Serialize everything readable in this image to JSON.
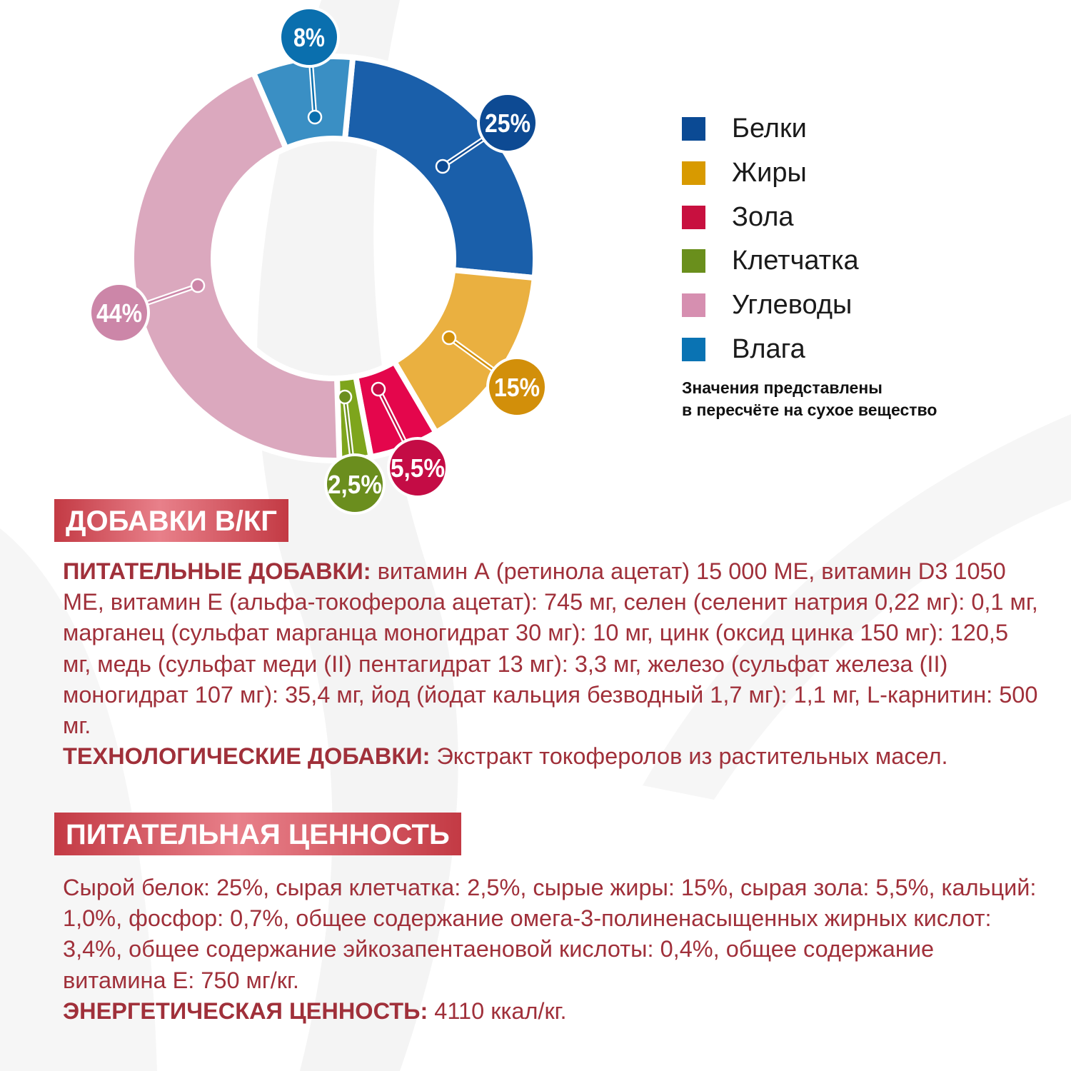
{
  "chart_data": {
    "type": "pie",
    "donut": true,
    "categories": [
      "Белки",
      "Жиры",
      "Зола",
      "Клетчатка",
      "Углеводы",
      "Влага"
    ],
    "values": [
      25,
      15,
      5.5,
      2.5,
      44,
      8
    ],
    "data_labels": [
      "25%",
      "15%",
      "5,5%",
      "2,5%",
      "44%",
      "8%"
    ],
    "slice_colors": [
      "#1a5faa",
      "#eab040",
      "#e4064c",
      "#7ea51c",
      "#dba8be",
      "#3a8fc4"
    ],
    "label_colors": [
      "#0d4a93",
      "#d28f0a",
      "#c40c45",
      "#6b8e1e",
      "#cc86a8",
      "#0a6fae"
    ],
    "legend_colors": [
      "#0b4a94",
      "#d89a00",
      "#c8103f",
      "#6a8f1c",
      "#d68fb0",
      "#0a73b3"
    ],
    "legend_position": "right",
    "note_lines": [
      "Значения представлены",
      "в пересчёте на сухое вещество"
    ]
  },
  "additives": {
    "header": "ДОБАВКИ В/КГ",
    "nutritional_label": "ПИТАТЕЛЬНЫЕ ДОБАВКИ:",
    "nutritional_text": " витамин А (ретинола ацетат) 15 000 МЕ, витамин D3 1050 МЕ, витамин Е (альфа-токоферола ацетат): 745 мг, селен (селенит натрия 0,22 мг): 0,1 мг, марганец (сульфат марганца моногидрат 30 мг): 10 мг, цинк (оксид цинка 150 мг): 120,5 мг, медь (сульфат меди (II) пентагидрат 13 мг): 3,3 мг, железо (сульфат железа (II) моногидрат 107 мг): 35,4 мг, йод (йодат кальция безводный 1,7 мг): 1,1 мг, L-карнитин: 500 мг.",
    "tech_label": "ТЕХНОЛОГИЧЕСКИЕ ДОБАВКИ:",
    "tech_text": " Экстракт токоферолов из растительных масел."
  },
  "nutrition": {
    "header": "ПИТАТЕЛЬНАЯ ЦЕННОСТЬ",
    "text": "Сырой белок: 25%, сырая клетчатка: 2,5%, сырые жиры: 15%, сырая зола: 5,5%, кальций: 1,0%, фосфор: 0,7%, общее содержание омега-3-полиненасыщенных жирных кислот: 3,4%, общее содержание эйкозапентаеновой кислоты: 0,4%, общее содержание витамина Е: 750 мг/кг.",
    "energy_label": "ЭНЕРГЕТИЧЕСКАЯ ЦЕННОСТЬ:",
    "energy_text": " 4110 ккал/кг."
  }
}
